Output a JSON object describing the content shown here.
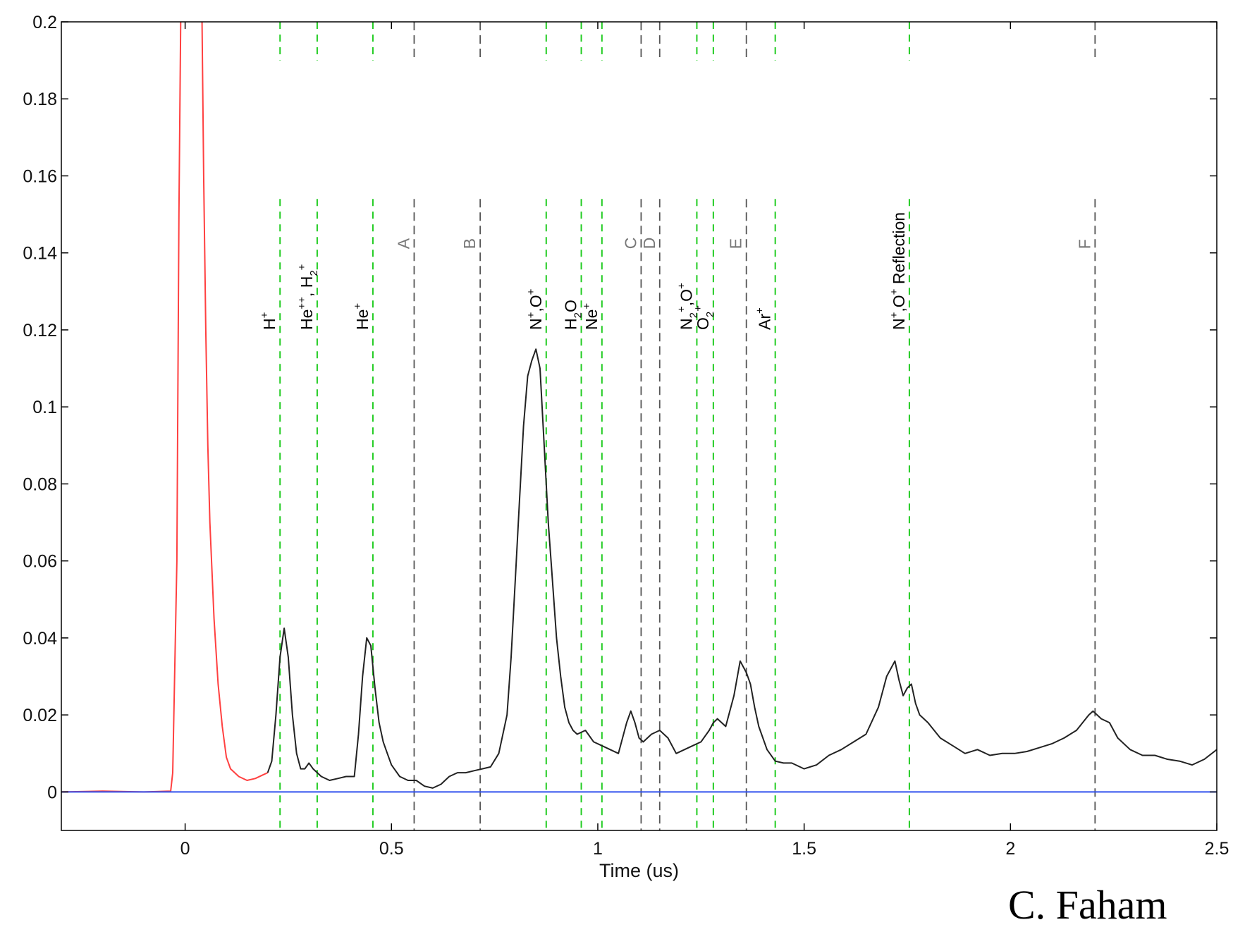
{
  "chart_data": {
    "type": "line",
    "title": "",
    "xlabel": "Time (us)",
    "ylabel": "",
    "xlim": [
      -0.3,
      2.5
    ],
    "ylim": [
      -0.01,
      0.2
    ],
    "xticks": [
      "0",
      "0.5",
      "1",
      "1.5",
      "2",
      "2.5"
    ],
    "xtick_values": [
      0,
      0.5,
      1,
      1.5,
      2,
      2.5
    ],
    "yticks": [
      "0",
      "0.02",
      "0.04",
      "0.06",
      "0.08",
      "0.1",
      "0.12",
      "0.14",
      "0.16",
      "0.18",
      "0.2"
    ],
    "ytick_values": [
      0,
      0.02,
      0.04,
      0.06,
      0.08,
      0.1,
      0.12,
      0.14,
      0.16,
      0.18,
      0.2
    ],
    "grid": false,
    "series": [
      {
        "color": "#ff4040",
        "x": [
          -0.3,
          -0.2,
          -0.1,
          -0.035,
          -0.03,
          -0.02,
          -0.015,
          -0.01,
          0.04,
          0.045,
          0.05,
          0.055,
          0.06,
          0.07,
          0.08,
          0.09,
          0.1,
          0.11,
          0.13,
          0.15,
          0.17,
          0.19,
          0.2
        ],
        "y": [
          0,
          0.0002,
          0,
          0.0002,
          0.005,
          0.06,
          0.15,
          0.21,
          0.21,
          0.16,
          0.12,
          0.09,
          0.07,
          0.045,
          0.028,
          0.017,
          0.009,
          0.006,
          0.004,
          0.003,
          0.0035,
          0.0045,
          0.005
        ]
      },
      {
        "color": "#222222",
        "x": [
          0.2,
          0.21,
          0.22,
          0.23,
          0.24,
          0.25,
          0.26,
          0.27,
          0.28,
          0.29,
          0.3,
          0.31,
          0.33,
          0.35,
          0.37,
          0.39,
          0.41,
          0.42,
          0.43,
          0.44,
          0.45,
          0.46,
          0.47,
          0.48,
          0.49,
          0.5,
          0.52,
          0.54,
          0.56,
          0.58,
          0.6,
          0.62,
          0.64,
          0.66,
          0.68,
          0.7,
          0.72,
          0.74,
          0.76,
          0.78,
          0.79,
          0.8,
          0.81,
          0.82,
          0.83,
          0.84,
          0.85,
          0.86,
          0.87,
          0.88,
          0.89,
          0.9,
          0.91,
          0.92,
          0.93,
          0.94,
          0.95,
          0.97,
          0.99,
          1.01,
          1.03,
          1.05,
          1.07,
          1.08,
          1.09,
          1.1,
          1.11,
          1.13,
          1.15,
          1.17,
          1.19,
          1.21,
          1.23,
          1.25,
          1.27,
          1.28,
          1.29,
          1.31,
          1.33,
          1.345,
          1.36,
          1.37,
          1.38,
          1.39,
          1.41,
          1.43,
          1.45,
          1.47,
          1.5,
          1.53,
          1.56,
          1.59,
          1.62,
          1.65,
          1.68,
          1.7,
          1.72,
          1.73,
          1.74,
          1.75,
          1.76,
          1.77,
          1.78,
          1.8,
          1.83,
          1.86,
          1.89,
          1.92,
          1.95,
          1.98,
          2.01,
          2.04,
          2.07,
          2.1,
          2.13,
          2.16,
          2.19,
          2.2,
          2.22,
          2.24,
          2.26,
          2.29,
          2.32,
          2.35,
          2.38,
          2.41,
          2.44,
          2.47,
          2.5
        ],
        "y": [
          0.005,
          0.008,
          0.02,
          0.035,
          0.0425,
          0.035,
          0.02,
          0.01,
          0.006,
          0.006,
          0.0075,
          0.006,
          0.004,
          0.003,
          0.0035,
          0.004,
          0.004,
          0.015,
          0.03,
          0.04,
          0.038,
          0.027,
          0.018,
          0.013,
          0.01,
          0.007,
          0.004,
          0.003,
          0.003,
          0.0015,
          0.001,
          0.002,
          0.004,
          0.005,
          0.005,
          0.0055,
          0.006,
          0.0065,
          0.01,
          0.02,
          0.035,
          0.055,
          0.075,
          0.095,
          0.108,
          0.112,
          0.115,
          0.11,
          0.09,
          0.07,
          0.055,
          0.04,
          0.03,
          0.022,
          0.018,
          0.016,
          0.015,
          0.016,
          0.013,
          0.012,
          0.011,
          0.01,
          0.018,
          0.021,
          0.018,
          0.014,
          0.013,
          0.015,
          0.016,
          0.014,
          0.01,
          0.011,
          0.012,
          0.013,
          0.016,
          0.018,
          0.019,
          0.017,
          0.025,
          0.034,
          0.031,
          0.028,
          0.022,
          0.017,
          0.011,
          0.008,
          0.0075,
          0.0075,
          0.006,
          0.007,
          0.0095,
          0.011,
          0.013,
          0.015,
          0.022,
          0.03,
          0.034,
          0.029,
          0.025,
          0.027,
          0.028,
          0.023,
          0.02,
          0.018,
          0.014,
          0.012,
          0.01,
          0.011,
          0.0095,
          0.01,
          0.01,
          0.0105,
          0.0115,
          0.0125,
          0.014,
          0.016,
          0.02,
          0.021,
          0.019,
          0.018,
          0.014,
          0.011,
          0.0095,
          0.0095,
          0.0085,
          0.008,
          0.007,
          0.0085,
          0.011
        ]
      },
      {
        "color": "#3050ee",
        "x": [
          -0.3,
          2.5
        ],
        "y": [
          0,
          0
        ]
      }
    ],
    "markers": [
      {
        "x": 0.23,
        "kind": "ion",
        "label": "H",
        "sup": "+"
      },
      {
        "x": 0.32,
        "kind": "ion",
        "label": "He",
        "sup": "++",
        "label2": ", H",
        "sub2": "2",
        "sup2": "+"
      },
      {
        "x": 0.455,
        "kind": "ion",
        "label": "He",
        "sup": "+"
      },
      {
        "x": 0.555,
        "kind": "ref",
        "label": "A"
      },
      {
        "x": 0.715,
        "kind": "ref",
        "label": "B"
      },
      {
        "x": 0.875,
        "kind": "ion",
        "label": "N",
        "sup": "+",
        "label2": ",O",
        "sup2": "+"
      },
      {
        "x": 0.96,
        "kind": "ion",
        "label": "H",
        "sub": "2",
        "label2": "O"
      },
      {
        "x": 1.01,
        "kind": "ion",
        "label": "Ne",
        "sup": "+"
      },
      {
        "x": 1.105,
        "kind": "ref",
        "label": "C"
      },
      {
        "x": 1.15,
        "kind": "ref",
        "label": "D"
      },
      {
        "x": 1.24,
        "kind": "ion",
        "label": "N",
        "sub": "2",
        "sup": "+",
        "label2": ",O",
        "sup2": "+"
      },
      {
        "x": 1.28,
        "kind": "ion",
        "label": "O",
        "sub": "2",
        "sup": "+"
      },
      {
        "x": 1.36,
        "kind": "ref",
        "label": "E"
      },
      {
        "x": 1.43,
        "kind": "ion",
        "label": "Ar",
        "sup": "+"
      },
      {
        "x": 1.755,
        "kind": "ion",
        "label": "N",
        "sup": "+",
        "label2": ",O",
        "sup2": "+",
        "label3": " Reflection"
      },
      {
        "x": 2.205,
        "kind": "ref",
        "label": "F"
      }
    ],
    "marker_colors": {
      "ion": "#22cc22",
      "ref": "#555555",
      "ref_label": "#777777"
    }
  },
  "credit": "C. Faham"
}
